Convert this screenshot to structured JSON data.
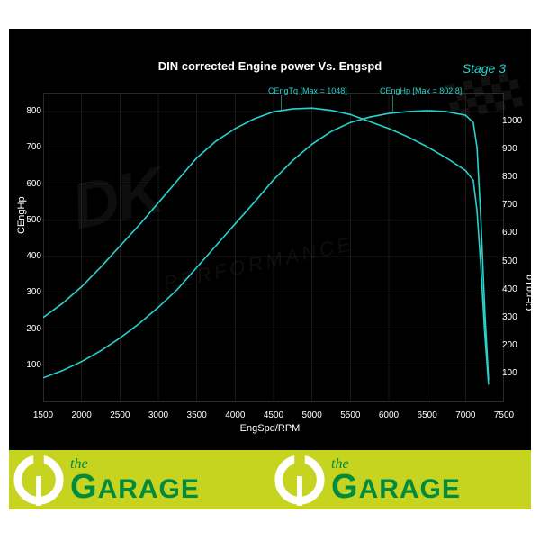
{
  "chart": {
    "title": "DIN corrected Engine power Vs. Engspd",
    "stage_label": "Stage 3",
    "xlabel": "EngSpd/RPM",
    "ylabel_left": "CEngHp",
    "ylabel_right": "CEngTq",
    "series_tq_label": "CEngTq [Max = 1048]",
    "series_hp_label": "CEngHp [Max = 802.8]",
    "background_color": "#000000",
    "grid_color": "#555555",
    "line_color": "#26d4ce",
    "text_color": "#ffffff",
    "accent_color": "#26d4ce",
    "line_width": 1.6,
    "xlim": [
      1500,
      7500
    ],
    "ylim_left": [
      0,
      850
    ],
    "ylim_right": [
      0,
      1100
    ],
    "xticks": [
      1500,
      2000,
      2500,
      3000,
      3500,
      4000,
      4500,
      5000,
      5500,
      6000,
      6500,
      7000,
      7500
    ],
    "yticks_left": [
      100,
      200,
      300,
      400,
      500,
      600,
      700,
      800
    ],
    "yticks_right": [
      100,
      200,
      300,
      400,
      500,
      600,
      700,
      800,
      900,
      1000
    ],
    "series_hp": {
      "x": [
        1500,
        1750,
        2000,
        2250,
        2500,
        2750,
        3000,
        3250,
        3500,
        3750,
        4000,
        4250,
        4500,
        4750,
        5000,
        5250,
        5500,
        5750,
        6000,
        6250,
        6500,
        6750,
        7000,
        7100,
        7150,
        7200,
        7250,
        7300
      ],
      "y": [
        65,
        85,
        110,
        140,
        175,
        215,
        260,
        310,
        370,
        430,
        490,
        550,
        612,
        665,
        710,
        745,
        770,
        785,
        795,
        800,
        803,
        800,
        790,
        770,
        700,
        500,
        250,
        60
      ]
    },
    "series_tq": {
      "x": [
        1500,
        1750,
        2000,
        2250,
        2500,
        2750,
        3000,
        3250,
        3500,
        3750,
        4000,
        4250,
        4500,
        4750,
        5000,
        5250,
        5500,
        5750,
        6000,
        6250,
        6500,
        6750,
        7000,
        7100,
        7150,
        7200,
        7250,
        7300
      ],
      "y": [
        300,
        350,
        410,
        480,
        555,
        630,
        710,
        790,
        870,
        930,
        975,
        1010,
        1035,
        1045,
        1048,
        1040,
        1025,
        1000,
        975,
        945,
        910,
        870,
        825,
        790,
        680,
        480,
        240,
        60
      ]
    }
  },
  "watermark": {
    "line1": "DK",
    "line2": "PERFORMANCE"
  },
  "footer": {
    "bg_color": "#c6d420",
    "text_color": "#028a3d",
    "the": "the",
    "garage": "GARAGE"
  }
}
